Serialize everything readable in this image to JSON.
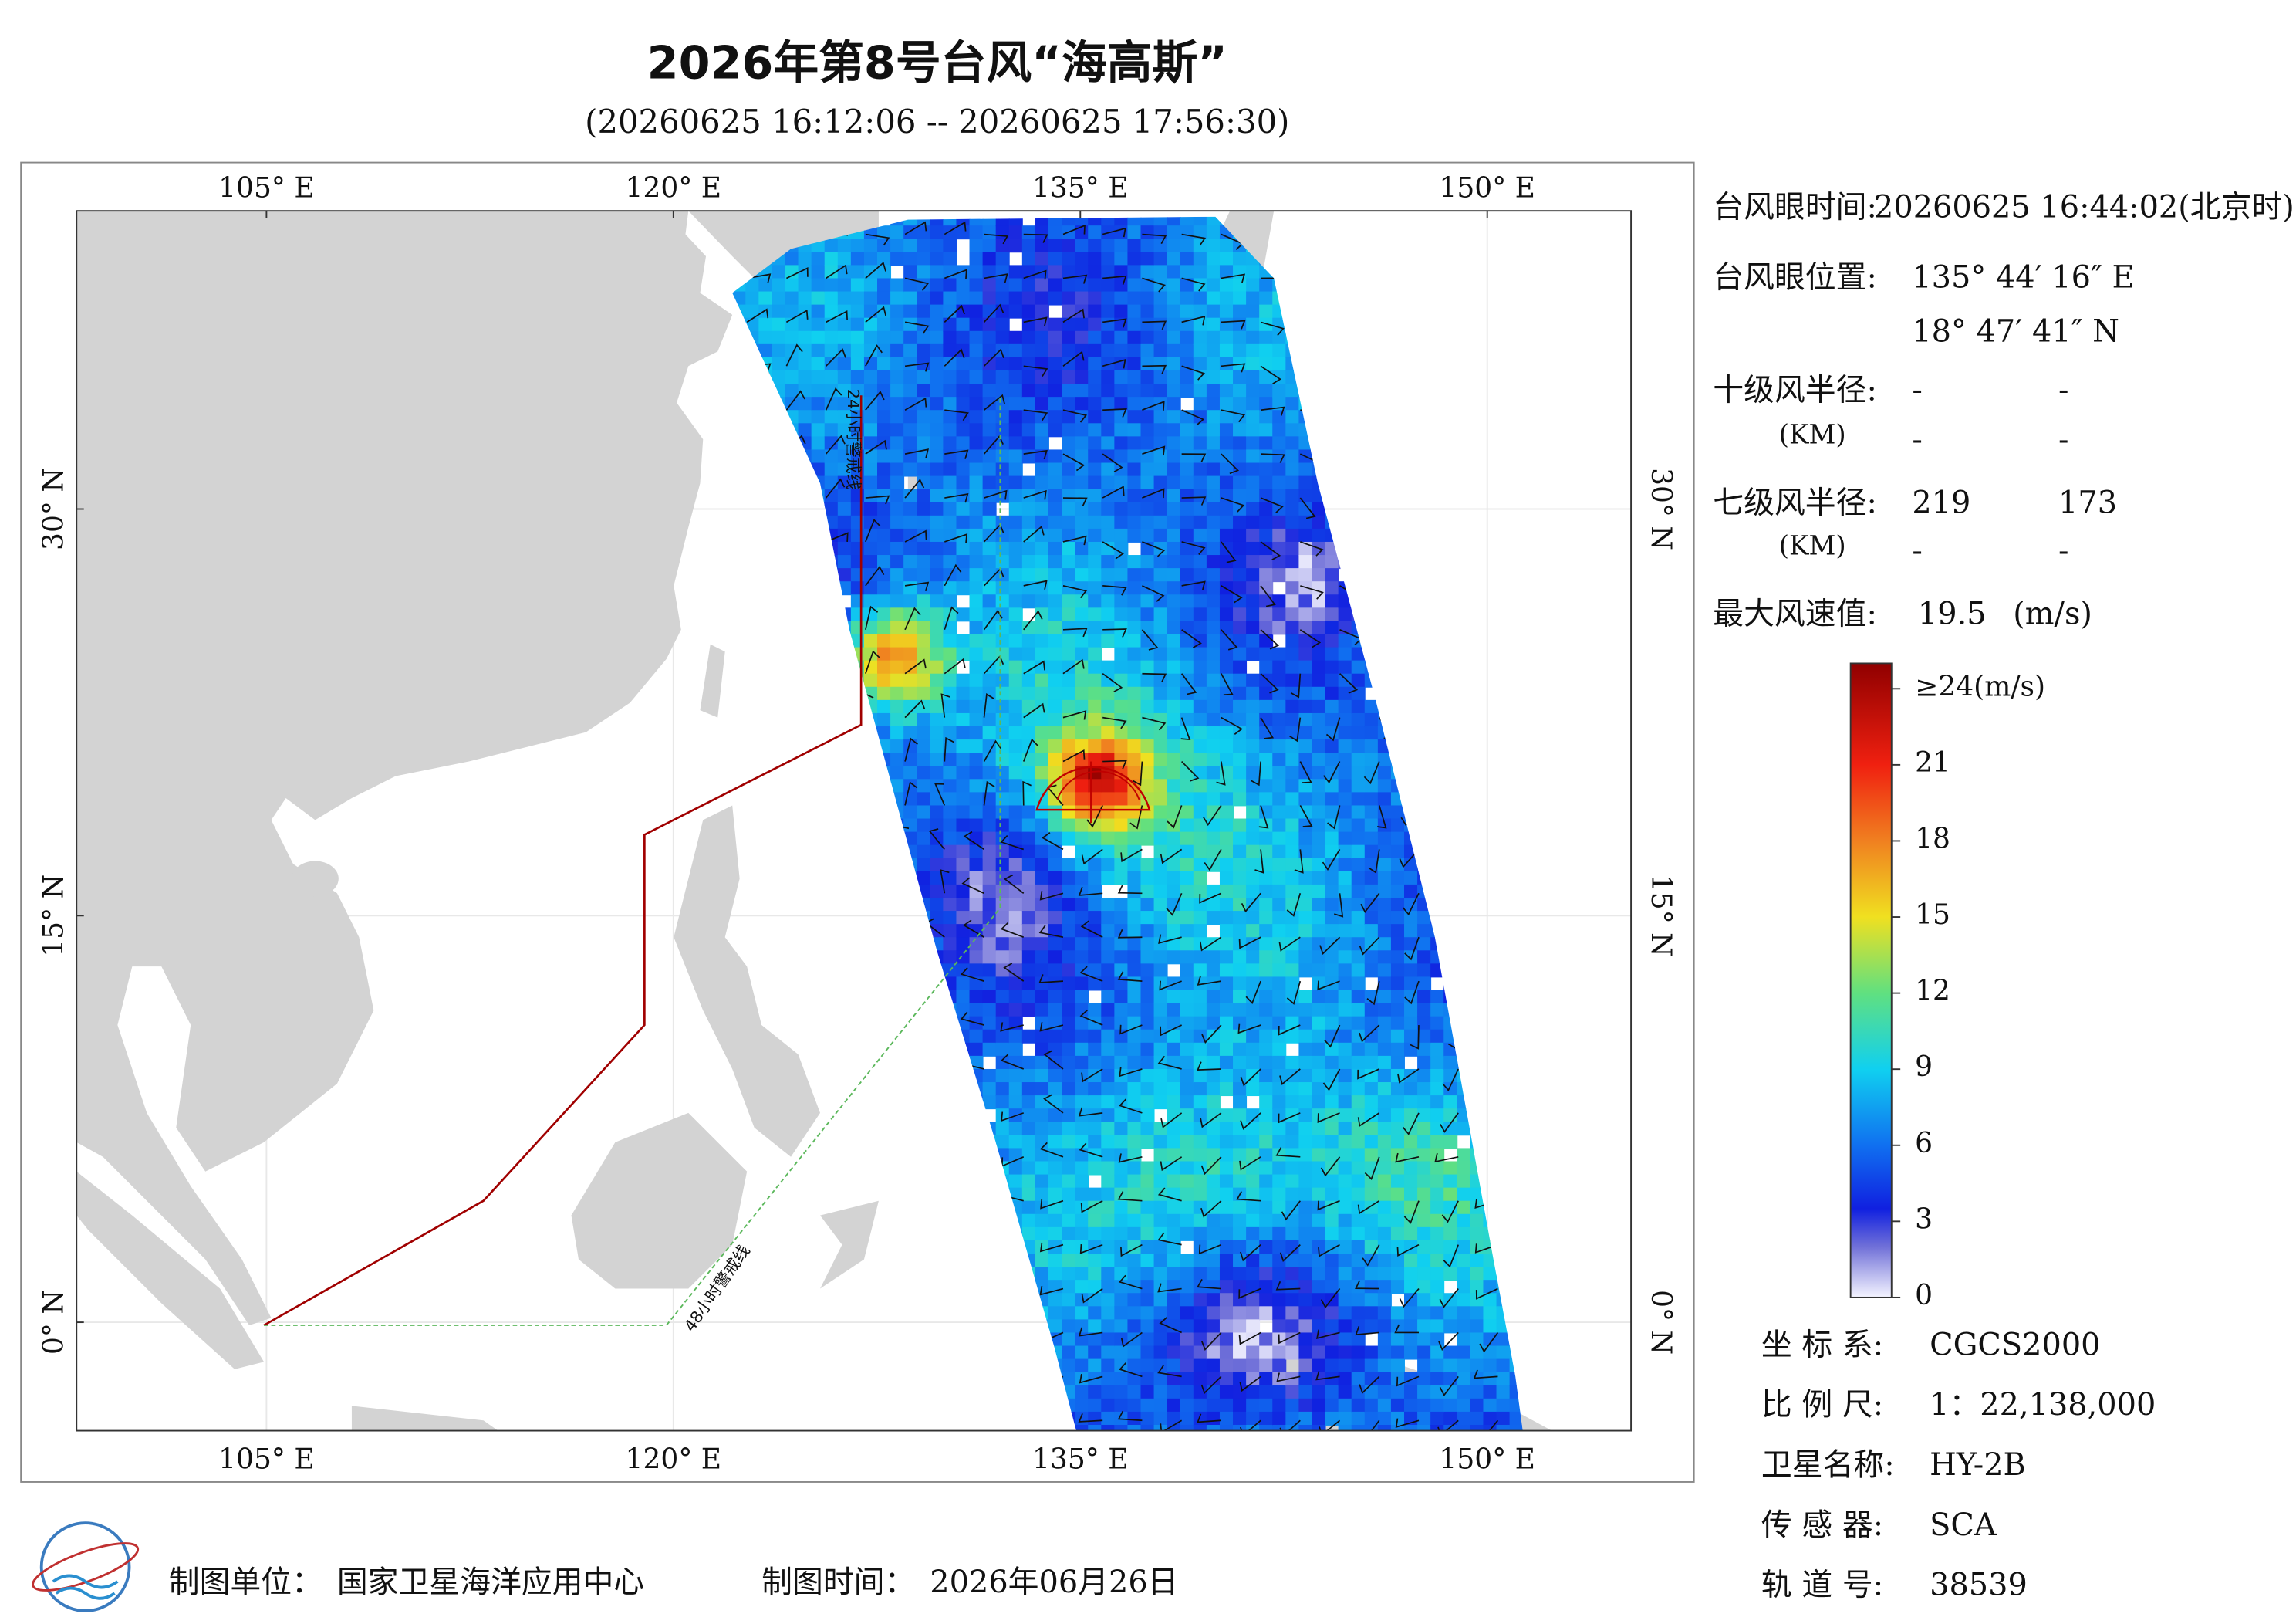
{
  "header": {
    "title": "2026年第8号台风“海高斯”",
    "subtitle": "(20260625 16:12:06 -- 20260625 17:56:30)"
  },
  "map": {
    "lonlim": [
      98,
      155.3
    ],
    "latlim": [
      -4,
      41
    ],
    "lonticks": [
      {
        "value": 105,
        "label": "105° E"
      },
      {
        "value": 120,
        "label": "120° E"
      },
      {
        "value": 135,
        "label": "135° E"
      },
      {
        "value": 150,
        "label": "150° E"
      }
    ],
    "latticks": [
      {
        "value": 30,
        "label": "30° N"
      },
      {
        "value": 15,
        "label": "15° N"
      },
      {
        "value": 0,
        "label": "0° N"
      }
    ],
    "warning_24h": "24小时警戒线",
    "warning_48h": "48小时警戒线"
  },
  "info": {
    "eye_time": {
      "label": "台风眼时间:",
      "value": "20260625 16:44:02(北京时)"
    },
    "eye_position": {
      "label": "台风眼位置:",
      "lon": "135° 44′ 16″ E",
      "lat": "18° 47′ 41″ N"
    },
    "r10": {
      "label": "十级风半径:",
      "unit": "(KM)",
      "values": [
        [
          "-",
          "-"
        ],
        [
          "-",
          "-"
        ]
      ]
    },
    "r7": {
      "label": "七级风半径:",
      "unit": "(KM)",
      "values": [
        [
          219,
          173
        ],
        [
          "-",
          "-"
        ]
      ]
    },
    "max_wind": {
      "label": "最大风速值:",
      "value": 19.5,
      "unit": "(m/s)"
    }
  },
  "colorbar": {
    "range": [
      0,
      25
    ],
    "ticks": [
      {
        "value": 24,
        "label": "≥24(m/s)"
      },
      21,
      18,
      15,
      12,
      9,
      6,
      3,
      0
    ]
  },
  "meta": [
    {
      "label": "坐 标 系:",
      "value": "CGCS2000"
    },
    {
      "label": "比 例 尺:",
      "value": "1：22,138,000"
    },
    {
      "label": "卫星名称:",
      "value": "HY-2B"
    },
    {
      "label": "传 感 器:",
      "value": "SCA"
    },
    {
      "label": "轨 道 号:",
      "value": "38539"
    }
  ],
  "footer": {
    "producer_label": "制图单位：",
    "producer": "国家卫星海洋应用中心",
    "time_label": "制图时间：",
    "time": "2026年06月26日"
  }
}
